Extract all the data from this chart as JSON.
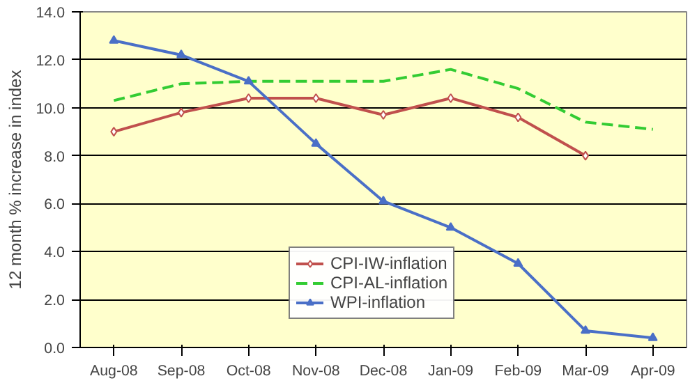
{
  "chart_data": {
    "type": "line",
    "ylabel": "12 month % increase in index",
    "categories": [
      "Aug-08",
      "Sep-08",
      "Oct-08",
      "Nov-08",
      "Dec-08",
      "Jan-09",
      "Feb-09",
      "Mar-09",
      "Apr-09"
    ],
    "series": [
      {
        "name": "CPI-IW-inflation",
        "color": "#c0504d",
        "marker": "diamond",
        "line_style": "solid",
        "values": [
          9.0,
          9.8,
          10.4,
          10.4,
          9.7,
          10.4,
          9.6,
          8.0,
          null
        ]
      },
      {
        "name": "CPI-AL-inflation",
        "color": "#33cc33",
        "marker": "none",
        "line_style": "dashed",
        "values": [
          10.3,
          11.0,
          11.1,
          11.1,
          11.1,
          11.6,
          10.8,
          9.4,
          9.1
        ]
      },
      {
        "name": "WPI-inflation",
        "color": "#4a6fc7",
        "marker": "triangle",
        "line_style": "solid",
        "values": [
          12.8,
          12.2,
          11.1,
          8.5,
          6.1,
          5.0,
          3.5,
          0.7,
          0.4
        ]
      }
    ],
    "ylim": [
      0,
      14
    ],
    "yticks": [
      {
        "value": 0,
        "label": "0.0"
      },
      {
        "value": 2,
        "label": "2.0"
      },
      {
        "value": 4,
        "label": "4.0"
      },
      {
        "value": 6,
        "label": "6.0"
      },
      {
        "value": 8,
        "label": "8.0"
      },
      {
        "value": 10,
        "label": "10.0"
      },
      {
        "value": 12,
        "label": "12.0"
      },
      {
        "value": 14,
        "label": "14.0"
      }
    ],
    "grid": "y",
    "legend": "bottom"
  }
}
